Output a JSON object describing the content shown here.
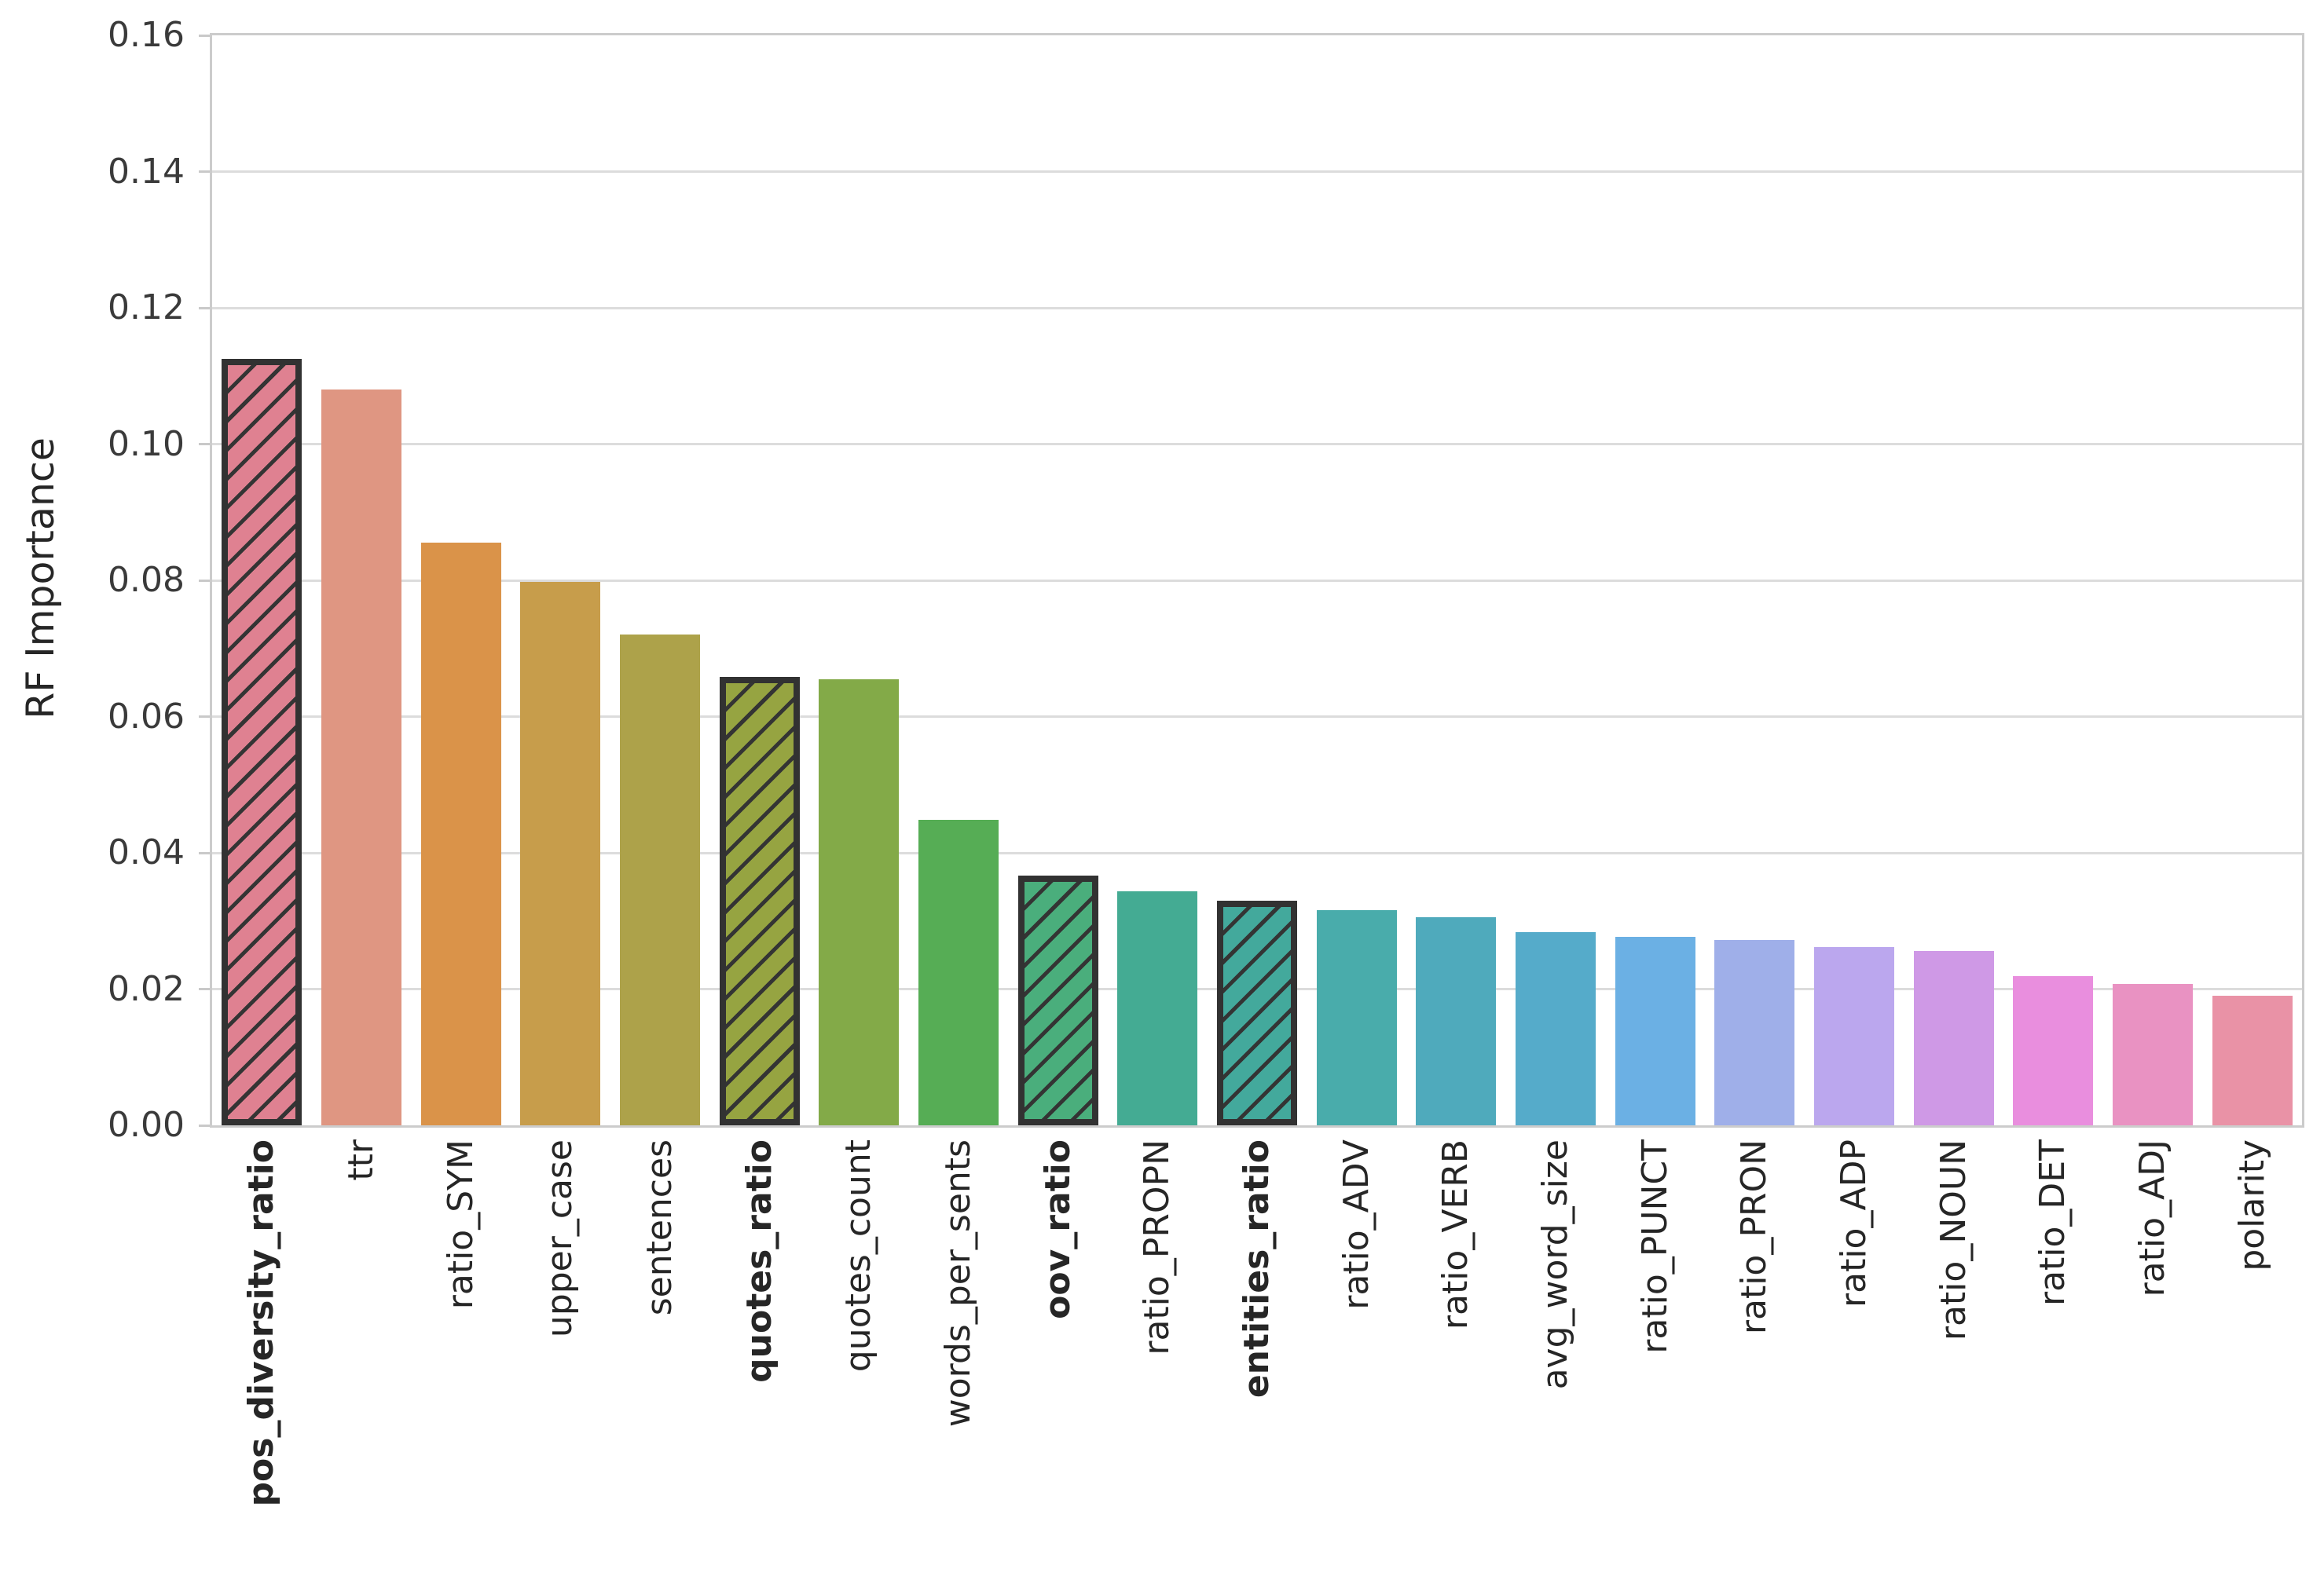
{
  "figure": {
    "background": "#ffffff",
    "text_color": "#262626",
    "grid_color": "#dcdcdc",
    "spine_color": "#cccccc",
    "hatch_edge_color": "#323232"
  },
  "y_axis": {
    "label": "RF Importance",
    "tick_labels": [
      "0.00",
      "0.02",
      "0.04",
      "0.06",
      "0.08",
      "0.10",
      "0.12",
      "0.14",
      "0.16"
    ]
  },
  "chart_data": {
    "type": "bar",
    "title": "",
    "xlabel": "",
    "ylabel": "RF Importance",
    "ylim": [
      0,
      0.16
    ],
    "grid": "horizontal",
    "legend": "none",
    "categories": [
      "pos_diversity_ratio",
      "ttr",
      "ratio_SYM",
      "upper_case",
      "sentences",
      "quotes_ratio",
      "quotes_count",
      "words_per_sents",
      "oov_ratio",
      "ratio_PROPN",
      "entities_ratio",
      "ratio_ADV",
      "ratio_VERB",
      "avg_word_size",
      "ratio_PUNCT",
      "ratio_PRON",
      "ratio_ADP",
      "ratio_NOUN",
      "ratio_DET",
      "ratio_ADJ",
      "polarity"
    ],
    "values": [
      0.1125,
      0.108,
      0.0855,
      0.0798,
      0.0721,
      0.0658,
      0.0655,
      0.0448,
      0.0366,
      0.0344,
      0.033,
      0.0316,
      0.0306,
      0.0283,
      0.0277,
      0.0272,
      0.0262,
      0.0256,
      0.0219,
      0.0208,
      0.019
    ],
    "bar_colors": [
      "#df8191",
      "#df9682",
      "#da9349",
      "#c79d4b",
      "#ada24a",
      "#96a441",
      "#83aa48",
      "#56ad55",
      "#4aae7c",
      "#44ab93",
      "#43a99c",
      "#49acab",
      "#4faabc",
      "#55abca",
      "#6bb0e4",
      "#9fafe9",
      "#bba7ee",
      "#cf99e6",
      "#e98ede",
      "#e992c2",
      "#e992a6"
    ],
    "highlighted": [
      "pos_diversity_ratio",
      "quotes_ratio",
      "oov_ratio",
      "entities_ratio"
    ],
    "highlight_style": "hatched-border-bold-label"
  }
}
